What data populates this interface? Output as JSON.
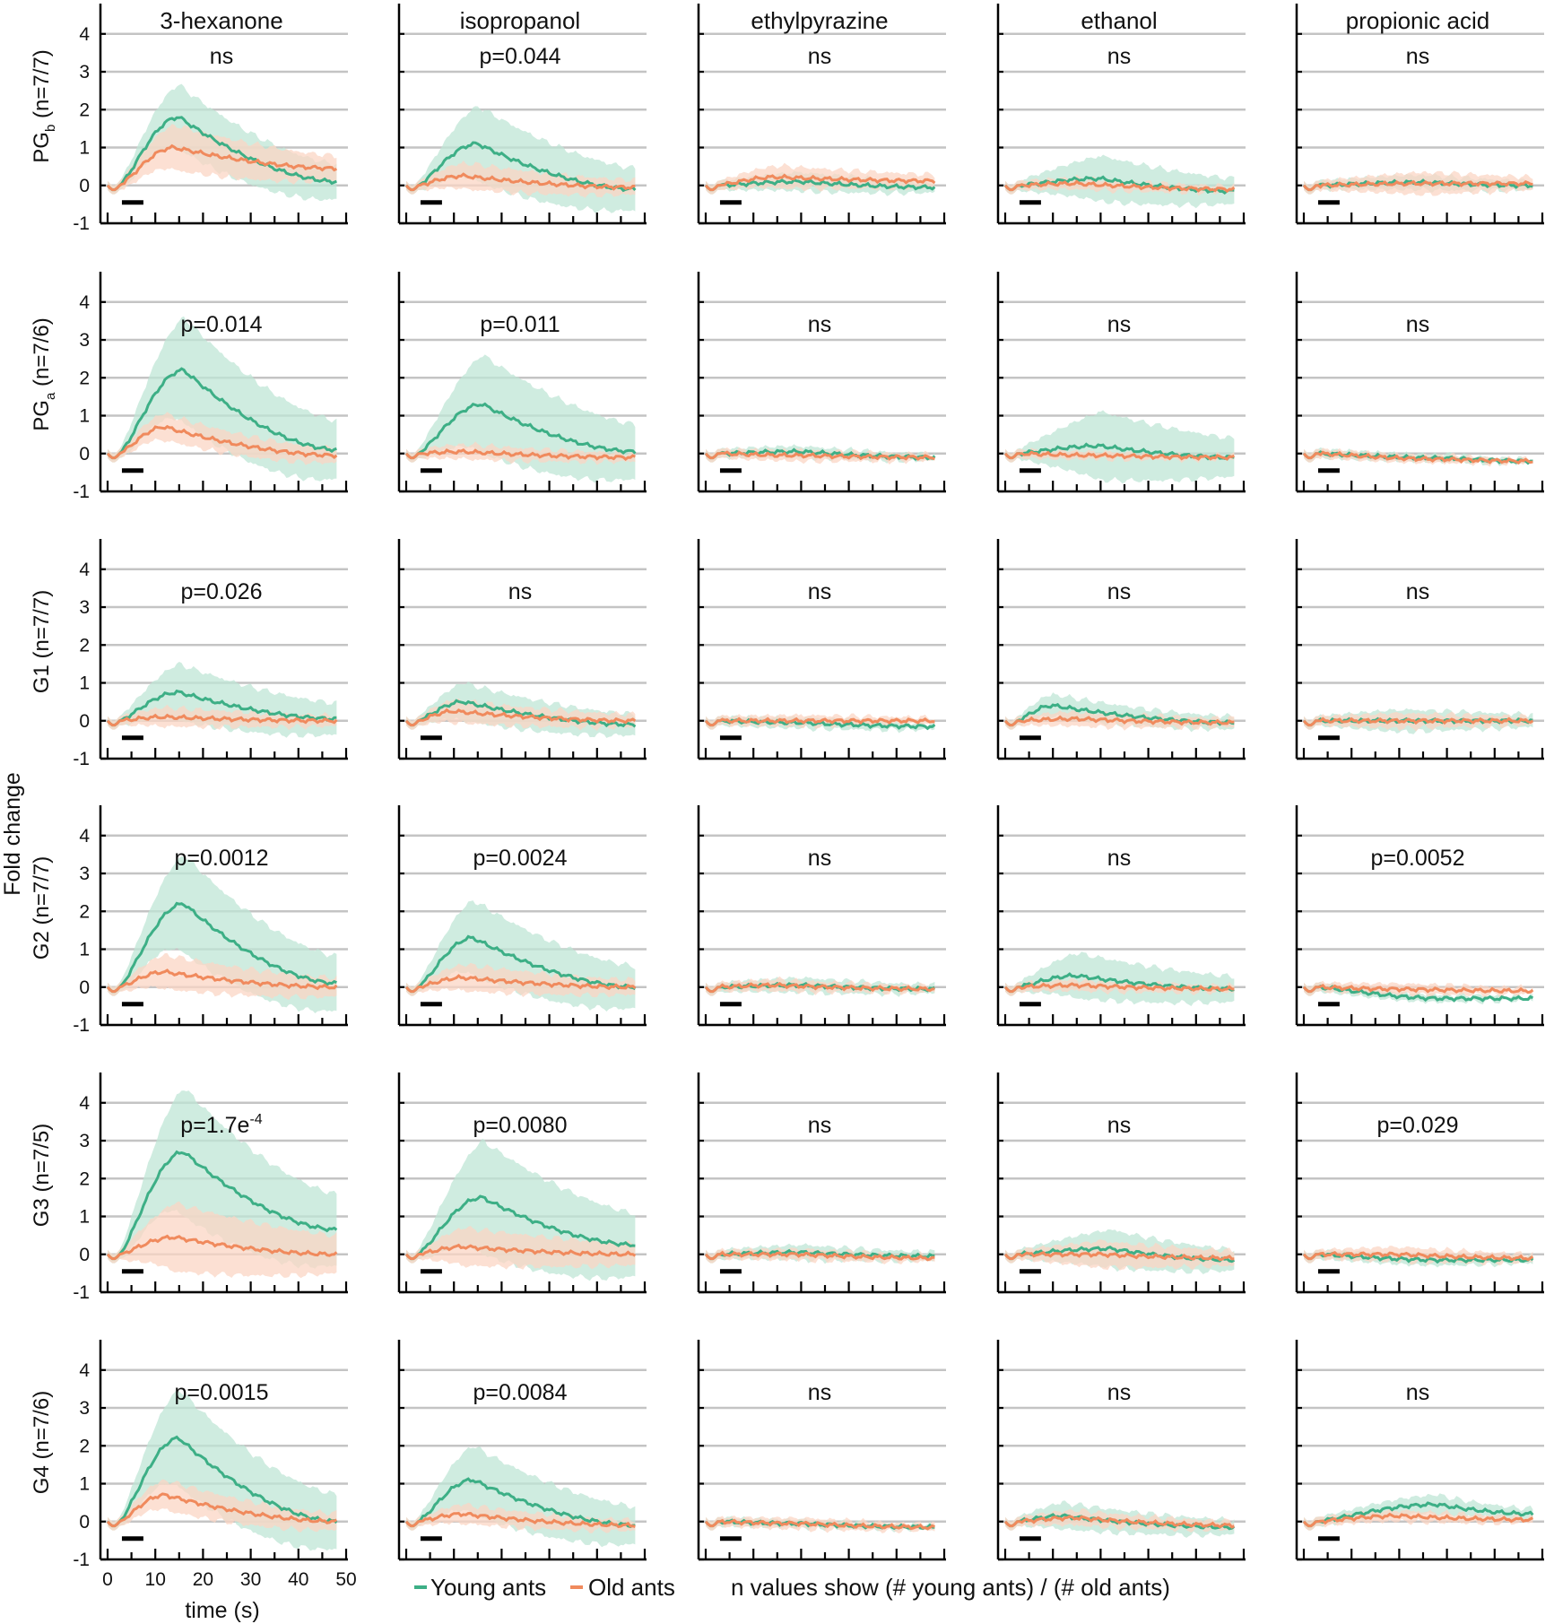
{
  "chart_data": {
    "type": "line",
    "title": "",
    "ylabel": "Fold change",
    "xlabel": "time (s)",
    "x_ticks": [
      "0",
      "10",
      "20",
      "30",
      "40",
      "50"
    ],
    "y_ticks": [
      "4",
      "3",
      "2",
      "1",
      "0",
      "-1"
    ],
    "ylim": [
      -1,
      4.8
    ],
    "xlim": [
      0,
      50
    ],
    "odor_window_s": [
      3,
      7.5
    ],
    "columns": [
      "3-hexanone",
      "isopropanol",
      "ethylpyrazine",
      "ethanol",
      "propionic acid"
    ],
    "rows": [
      {
        "prefix": "PG",
        "sub": "b",
        "suffix": " (n=7/7)"
      },
      {
        "prefix": "PG",
        "sub": "a",
        "suffix": " (n=7/6)"
      },
      {
        "prefix": "G1",
        "sub": "",
        "suffix": " (n=7/7)"
      },
      {
        "prefix": "G2",
        "sub": "",
        "suffix": " (n=7/7)"
      },
      {
        "prefix": "G3",
        "sub": "",
        "suffix": " (n=7/5)"
      },
      {
        "prefix": "G4",
        "sub": "",
        "suffix": " (n=7/6)"
      }
    ],
    "p_values": [
      [
        {
          "text": "ns"
        },
        {
          "text": "p=0.044"
        },
        {
          "text": "ns"
        },
        {
          "text": "ns"
        },
        {
          "text": "ns"
        }
      ],
      [
        {
          "text": "p=0.014"
        },
        {
          "text": "p=0.011"
        },
        {
          "text": "ns"
        },
        {
          "text": "ns"
        },
        {
          "text": "ns"
        }
      ],
      [
        {
          "text": "p=0.026"
        },
        {
          "text": "ns"
        },
        {
          "text": "ns"
        },
        {
          "text": "ns"
        },
        {
          "text": "ns"
        }
      ],
      [
        {
          "text": "p=0.0012"
        },
        {
          "text": "p=0.0024"
        },
        {
          "text": "ns"
        },
        {
          "text": "ns"
        },
        {
          "text": "p=0.0052"
        }
      ],
      [
        {
          "text": "p=1.7e",
          "sup": "-4"
        },
        {
          "text": "p=0.0080"
        },
        {
          "text": "ns"
        },
        {
          "text": "ns"
        },
        {
          "text": "p=0.029"
        }
      ],
      [
        {
          "text": "p=0.0015"
        },
        {
          "text": "p=0.0084"
        },
        {
          "text": "ns"
        },
        {
          "text": "ns"
        },
        {
          "text": "ns"
        }
      ]
    ],
    "series": [
      {
        "name": "Young ants",
        "color": "#3daf86",
        "band_color": "#bfe6d6",
        "panels": [
          [
            {
              "peak": 1.8,
              "tpeak": 15,
              "end": 0.1,
              "band": 0.85
            },
            {
              "peak": 1.1,
              "tpeak": 15,
              "end": -0.1,
              "band": 1.0
            },
            {
              "peak": 0.1,
              "tpeak": 20,
              "end": -0.05,
              "band": 0.25
            },
            {
              "peak": 0.18,
              "tpeak": 20,
              "end": -0.15,
              "band": 0.6
            },
            {
              "peak": 0.08,
              "tpeak": 25,
              "end": 0.0,
              "band": 0.2
            }
          ],
          [
            {
              "peak": 2.2,
              "tpeak": 16,
              "end": 0.1,
              "band": 1.4
            },
            {
              "peak": 1.3,
              "tpeak": 16,
              "end": 0.05,
              "band": 1.3
            },
            {
              "peak": 0.05,
              "tpeak": 20,
              "end": -0.1,
              "band": 0.15
            },
            {
              "peak": 0.2,
              "tpeak": 20,
              "end": -0.1,
              "band": 0.9
            },
            {
              "peak": -0.12,
              "tpeak": 30,
              "end": -0.2,
              "band": 0.1
            }
          ],
          [
            {
              "peak": 0.75,
              "tpeak": 15,
              "end": 0.05,
              "band": 0.75
            },
            {
              "peak": 0.5,
              "tpeak": 12,
              "end": -0.1,
              "band": 0.5
            },
            {
              "peak": -0.05,
              "tpeak": 20,
              "end": -0.15,
              "band": 0.15
            },
            {
              "peak": 0.4,
              "tpeak": 10,
              "end": -0.05,
              "band": 0.3
            },
            {
              "peak": 0.0,
              "tpeak": 20,
              "end": 0.0,
              "band": 0.3
            }
          ],
          [
            {
              "peak": 2.2,
              "tpeak": 16,
              "end": 0.1,
              "band": 1.3
            },
            {
              "peak": 1.3,
              "tpeak": 14,
              "end": 0.0,
              "band": 1.0
            },
            {
              "peak": 0.05,
              "tpeak": 20,
              "end": -0.05,
              "band": 0.2
            },
            {
              "peak": 0.3,
              "tpeak": 15,
              "end": -0.05,
              "band": 0.6
            },
            {
              "peak": -0.3,
              "tpeak": 30,
              "end": -0.3,
              "band": 0.1
            }
          ],
          [
            {
              "peak": 2.7,
              "tpeak": 16,
              "end": 0.65,
              "band": 1.7
            },
            {
              "peak": 1.5,
              "tpeak": 16,
              "end": 0.25,
              "band": 1.5
            },
            {
              "peak": 0.05,
              "tpeak": 20,
              "end": -0.05,
              "band": 0.2
            },
            {
              "peak": 0.15,
              "tpeak": 22,
              "end": -0.15,
              "band": 0.5
            },
            {
              "peak": -0.15,
              "tpeak": 30,
              "end": -0.15,
              "band": 0.15
            }
          ],
          [
            {
              "peak": 2.2,
              "tpeak": 15,
              "end": 0.0,
              "band": 1.3
            },
            {
              "peak": 1.1,
              "tpeak": 14,
              "end": -0.1,
              "band": 0.9
            },
            {
              "peak": -0.05,
              "tpeak": 20,
              "end": -0.15,
              "band": 0.1
            },
            {
              "peak": 0.15,
              "tpeak": 12,
              "end": -0.15,
              "band": 0.35
            },
            {
              "peak": 0.45,
              "tpeak": 28,
              "end": 0.2,
              "band": 0.25
            }
          ]
        ]
      },
      {
        "name": "Old ants",
        "color": "#f08a5d",
        "band_color": "#fbd5c4",
        "panels": [
          [
            {
              "peak": 1.0,
              "tpeak": 14,
              "end": 0.45,
              "band": 0.6
            },
            {
              "peak": 0.25,
              "tpeak": 12,
              "end": -0.05,
              "band": 0.35
            },
            {
              "peak": 0.22,
              "tpeak": 15,
              "end": 0.12,
              "band": 0.3
            },
            {
              "peak": 0.05,
              "tpeak": 15,
              "end": -0.1,
              "band": 0.15
            },
            {
              "peak": 0.05,
              "tpeak": 25,
              "end": 0.05,
              "band": 0.3
            }
          ],
          [
            {
              "peak": 0.7,
              "tpeak": 12,
              "end": -0.05,
              "band": 0.35
            },
            {
              "peak": 0.05,
              "tpeak": 12,
              "end": -0.1,
              "band": 0.2
            },
            {
              "peak": -0.05,
              "tpeak": 20,
              "end": -0.1,
              "band": 0.15
            },
            {
              "peak": -0.05,
              "tpeak": 20,
              "end": -0.1,
              "band": 0.1
            },
            {
              "peak": -0.15,
              "tpeak": 30,
              "end": -0.2,
              "band": 0.1
            }
          ],
          [
            {
              "peak": 0.1,
              "tpeak": 12,
              "end": 0.0,
              "band": 0.25
            },
            {
              "peak": 0.25,
              "tpeak": 10,
              "end": 0.0,
              "band": 0.3
            },
            {
              "peak": 0.0,
              "tpeak": 20,
              "end": 0.0,
              "band": 0.15
            },
            {
              "peak": 0.05,
              "tpeak": 15,
              "end": -0.05,
              "band": 0.2
            },
            {
              "peak": 0.0,
              "tpeak": 20,
              "end": 0.0,
              "band": 0.2
            }
          ],
          [
            {
              "peak": 0.4,
              "tpeak": 12,
              "end": 0.0,
              "band": 0.45
            },
            {
              "peak": 0.25,
              "tpeak": 12,
              "end": 0.0,
              "band": 0.35
            },
            {
              "peak": 0.05,
              "tpeak": 15,
              "end": -0.05,
              "band": 0.15
            },
            {
              "peak": 0.05,
              "tpeak": 15,
              "end": -0.05,
              "band": 0.15
            },
            {
              "peak": -0.05,
              "tpeak": 20,
              "end": -0.1,
              "band": 0.15
            }
          ],
          [
            {
              "peak": 0.45,
              "tpeak": 14,
              "end": 0.0,
              "band": 0.9
            },
            {
              "peak": 0.2,
              "tpeak": 12,
              "end": 0.0,
              "band": 0.5
            },
            {
              "peak": 0.0,
              "tpeak": 20,
              "end": -0.1,
              "band": 0.15
            },
            {
              "peak": 0.0,
              "tpeak": 20,
              "end": -0.1,
              "band": 0.35
            },
            {
              "peak": 0.0,
              "tpeak": 20,
              "end": -0.1,
              "band": 0.2
            }
          ],
          [
            {
              "peak": 0.7,
              "tpeak": 12,
              "end": 0.0,
              "band": 0.4
            },
            {
              "peak": 0.2,
              "tpeak": 12,
              "end": -0.1,
              "band": 0.25
            },
            {
              "peak": -0.05,
              "tpeak": 20,
              "end": -0.15,
              "band": 0.15
            },
            {
              "peak": 0.1,
              "tpeak": 15,
              "end": -0.1,
              "band": 0.2
            },
            {
              "peak": 0.15,
              "tpeak": 20,
              "end": 0.05,
              "band": 0.15
            }
          ]
        ]
      }
    ],
    "legend": [
      {
        "label": "Young ants",
        "color": "#3daf86"
      },
      {
        "label": "Old ants",
        "color": "#f08a5d"
      }
    ],
    "note": "n values show (# young ants) / (# old ants)",
    "grid": true
  }
}
